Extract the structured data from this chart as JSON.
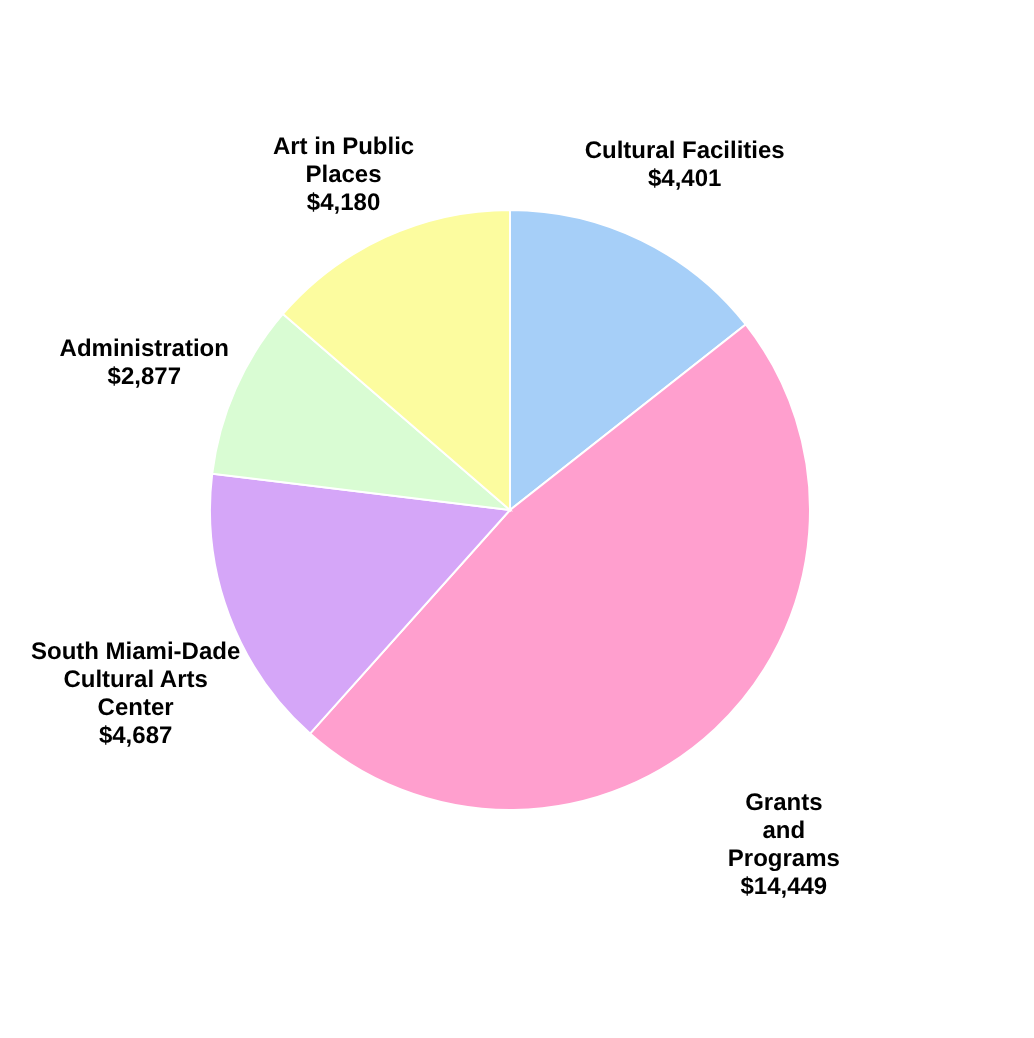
{
  "chart_data": {
    "type": "pie",
    "categories": [
      "Cultural Facilities",
      "Grants\nand\nPrograms",
      "South Miami-Dade\nCultural Arts\nCenter",
      "Administration",
      "Art in Public\nPlaces"
    ],
    "values": [
      4401,
      14449,
      4687,
      2877,
      4180
    ],
    "value_labels": [
      "$4,401",
      "$14,449",
      "$4,687",
      "$2,877",
      "$4,180"
    ],
    "colors": [
      "#a6cff8",
      "#ff9fce",
      "#d5a6f8",
      "#d9fcd3",
      "#fcfc9f"
    ],
    "legend": false
  }
}
